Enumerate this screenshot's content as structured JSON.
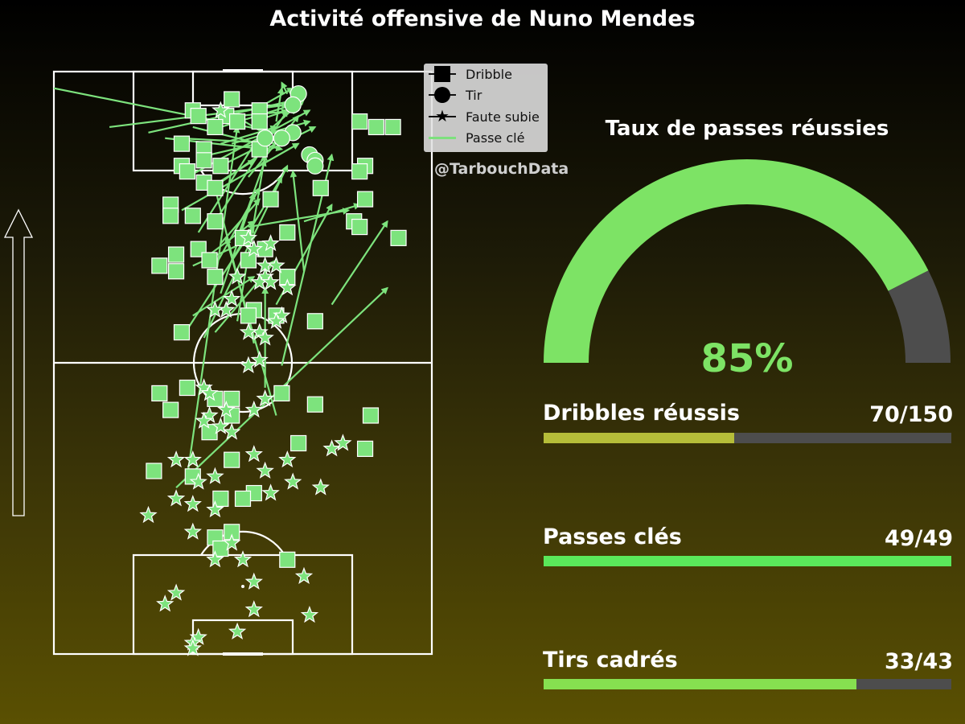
{
  "title": "Activité offensive de Nuno Mendes",
  "watermark": "@TarbouchData",
  "legend": {
    "dribble": "Dribble",
    "tir": "Tir",
    "faute": "Faute subie",
    "passe": "Passe clé"
  },
  "gauge": {
    "title": "Taux de passes réussies",
    "value_label": "85%",
    "fraction": 0.85,
    "fill_color": "#7de365",
    "rest_color": "#4d4d4d"
  },
  "stats": [
    {
      "label": "Dribbles réussis",
      "value_label": "70/150",
      "fraction": 0.4667,
      "color": "#b5bd39"
    },
    {
      "label": "Passes clés",
      "value_label": "49/49",
      "fraction": 1.0,
      "color": "#5ae85a"
    },
    {
      "label": "Tirs cadrés",
      "value_label": "33/43",
      "fraction": 0.7674,
      "color": "#86e050"
    }
  ],
  "colors": {
    "marker": "#7de37d",
    "pitch_lines": "#ffffff",
    "background_top": "#000000",
    "background_bottom": "#5a5002"
  },
  "chart_data": {
    "type": "scatter",
    "title": "Activité offensive de Nuno Mendes",
    "pitch": {
      "length": 105,
      "width": 68,
      "attacking_direction": "up"
    },
    "series": [
      {
        "name": "Dribble",
        "marker": "square",
        "points": [
          [
            98,
            25
          ],
          [
            100,
            32
          ],
          [
            97,
            31
          ],
          [
            98,
            37
          ],
          [
            95,
            29
          ],
          [
            97,
            26
          ],
          [
            96,
            33
          ],
          [
            96,
            37
          ],
          [
            96,
            55
          ],
          [
            95,
            61
          ],
          [
            95,
            58
          ],
          [
            92,
            23
          ],
          [
            91,
            27
          ],
          [
            91,
            37
          ],
          [
            88,
            23
          ],
          [
            89,
            27
          ],
          [
            88,
            30
          ],
          [
            88,
            56
          ],
          [
            87,
            55
          ],
          [
            87,
            24
          ],
          [
            85,
            27
          ],
          [
            84,
            29
          ],
          [
            84,
            48
          ],
          [
            82,
            56
          ],
          [
            82,
            39
          ],
          [
            81,
            21
          ],
          [
            79,
            21
          ],
          [
            79,
            25
          ],
          [
            78,
            29
          ],
          [
            78,
            54
          ],
          [
            77,
            55
          ],
          [
            76,
            42
          ],
          [
            75,
            34
          ],
          [
            75,
            62
          ],
          [
            73,
            26
          ],
          [
            73,
            38
          ],
          [
            72,
            22
          ],
          [
            71,
            28
          ],
          [
            71,
            35
          ],
          [
            70,
            19
          ],
          [
            69,
            22
          ],
          [
            68,
            29
          ],
          [
            68,
            42
          ],
          [
            62,
            36
          ],
          [
            61,
            40
          ],
          [
            61,
            35
          ],
          [
            60,
            47
          ],
          [
            58,
            23
          ],
          [
            48,
            24
          ],
          [
            47,
            41
          ],
          [
            47,
            19
          ],
          [
            46,
            32
          ],
          [
            46,
            29
          ],
          [
            45,
            47
          ],
          [
            44,
            21
          ],
          [
            43,
            32
          ],
          [
            43,
            57
          ],
          [
            40,
            28
          ],
          [
            38,
            44
          ],
          [
            37,
            56
          ],
          [
            35,
            32
          ],
          [
            33,
            18
          ],
          [
            32,
            25
          ],
          [
            29,
            36
          ],
          [
            28,
            30
          ],
          [
            28,
            34
          ],
          [
            22,
            32
          ],
          [
            21,
            29
          ],
          [
            19,
            30
          ],
          [
            17,
            42
          ]
        ]
      },
      {
        "name": "Tir",
        "marker": "circle",
        "points": [
          [
            101,
            44
          ],
          [
            99,
            43
          ],
          [
            94,
            43
          ],
          [
            93,
            41
          ],
          [
            93,
            38
          ],
          [
            90,
            46
          ],
          [
            89,
            47
          ],
          [
            88,
            47
          ]
        ]
      },
      {
        "name": "Faute subie",
        "marker": "star",
        "points": [
          [
            98,
            30
          ],
          [
            75,
            35
          ],
          [
            74,
            39
          ],
          [
            73,
            36
          ],
          [
            70,
            38
          ],
          [
            70,
            40
          ],
          [
            68,
            33
          ],
          [
            68,
            38
          ],
          [
            67,
            37
          ],
          [
            67,
            39
          ],
          [
            66,
            42
          ],
          [
            64,
            32
          ],
          [
            62,
            31
          ],
          [
            62,
            29
          ],
          [
            61,
            41
          ],
          [
            60,
            40
          ],
          [
            58,
            37
          ],
          [
            58,
            35
          ],
          [
            57,
            38
          ],
          [
            53,
            37
          ],
          [
            52,
            35
          ],
          [
            48,
            27
          ],
          [
            47,
            28
          ],
          [
            46,
            38
          ],
          [
            44,
            36
          ],
          [
            44,
            31
          ],
          [
            43,
            28
          ],
          [
            42,
            27
          ],
          [
            41,
            30
          ],
          [
            40,
            32
          ],
          [
            38,
            52
          ],
          [
            37,
            50
          ],
          [
            36,
            36
          ],
          [
            35,
            42
          ],
          [
            35,
            25
          ],
          [
            35,
            22
          ],
          [
            33,
            38
          ],
          [
            32,
            29
          ],
          [
            31,
            26
          ],
          [
            31,
            43
          ],
          [
            30,
            48
          ],
          [
            29,
            39
          ],
          [
            28,
            22
          ],
          [
            27,
            25
          ],
          [
            26,
            29
          ],
          [
            25,
            17
          ],
          [
            22,
            25
          ],
          [
            20,
            32
          ],
          [
            17,
            29
          ],
          [
            17,
            34
          ],
          [
            14,
            45
          ],
          [
            13,
            36
          ],
          [
            11,
            22
          ],
          [
            9,
            20
          ],
          [
            8,
            36
          ],
          [
            7,
            46
          ],
          [
            4,
            33
          ],
          [
            3,
            26
          ],
          [
            2,
            25
          ],
          [
            1,
            25
          ]
        ]
      },
      {
        "name": "Passe clé",
        "marker": "arrow",
        "passes": [
          [
            102,
            0,
            94,
            40
          ],
          [
            95,
            10,
            99,
            42
          ],
          [
            97,
            33,
            98,
            44
          ],
          [
            96,
            36,
            98,
            42
          ],
          [
            95,
            25,
            91,
            41
          ],
          [
            98,
            31,
            92,
            41
          ],
          [
            93,
            20,
            91,
            38
          ],
          [
            92,
            30,
            95,
            40
          ],
          [
            94,
            17,
            100,
            44
          ],
          [
            90,
            28,
            93,
            41
          ],
          [
            93,
            22,
            92,
            42
          ],
          [
            95,
            30,
            99,
            43
          ],
          [
            92,
            32,
            96,
            46
          ],
          [
            98,
            36,
            102,
            43
          ],
          [
            101,
            42,
            103,
            41
          ],
          [
            96,
            40,
            102,
            41
          ],
          [
            92,
            36,
            100,
            45
          ],
          [
            90,
            37,
            95,
            47
          ],
          [
            88,
            30,
            92,
            38
          ],
          [
            86,
            24,
            98,
            46
          ],
          [
            85,
            30,
            95,
            44
          ],
          [
            86,
            35,
            97,
            44
          ],
          [
            84,
            28,
            89,
            36
          ],
          [
            80,
            23,
            92,
            44
          ],
          [
            78,
            29,
            98,
            42
          ],
          [
            76,
            26,
            95,
            38
          ],
          [
            77,
            35,
            80,
            53
          ],
          [
            78,
            45,
            81,
            55
          ],
          [
            75,
            33,
            89,
            38
          ],
          [
            74,
            30,
            82,
            37
          ],
          [
            72,
            28,
            78,
            36
          ],
          [
            71,
            32,
            86,
            41
          ],
          [
            70,
            25,
            75,
            36
          ],
          [
            70,
            29,
            84,
            37
          ],
          [
            69,
            45,
            87,
            43
          ],
          [
            65,
            30,
            83,
            36
          ],
          [
            63,
            40,
            81,
            50
          ],
          [
            63,
            50,
            78,
            60
          ],
          [
            61,
            25,
            68,
            36
          ],
          [
            60,
            33,
            90,
            38
          ],
          [
            58,
            29,
            71,
            40
          ],
          [
            57,
            27,
            88,
            42
          ],
          [
            57,
            23,
            77,
            36
          ],
          [
            56,
            36,
            84,
            29
          ],
          [
            52,
            41,
            90,
            50
          ],
          [
            48,
            38,
            66,
            38
          ],
          [
            43,
            40,
            75,
            31
          ],
          [
            32,
            24,
            95,
            33
          ],
          [
            30,
            22,
            66,
            60
          ]
        ]
      }
    ]
  }
}
